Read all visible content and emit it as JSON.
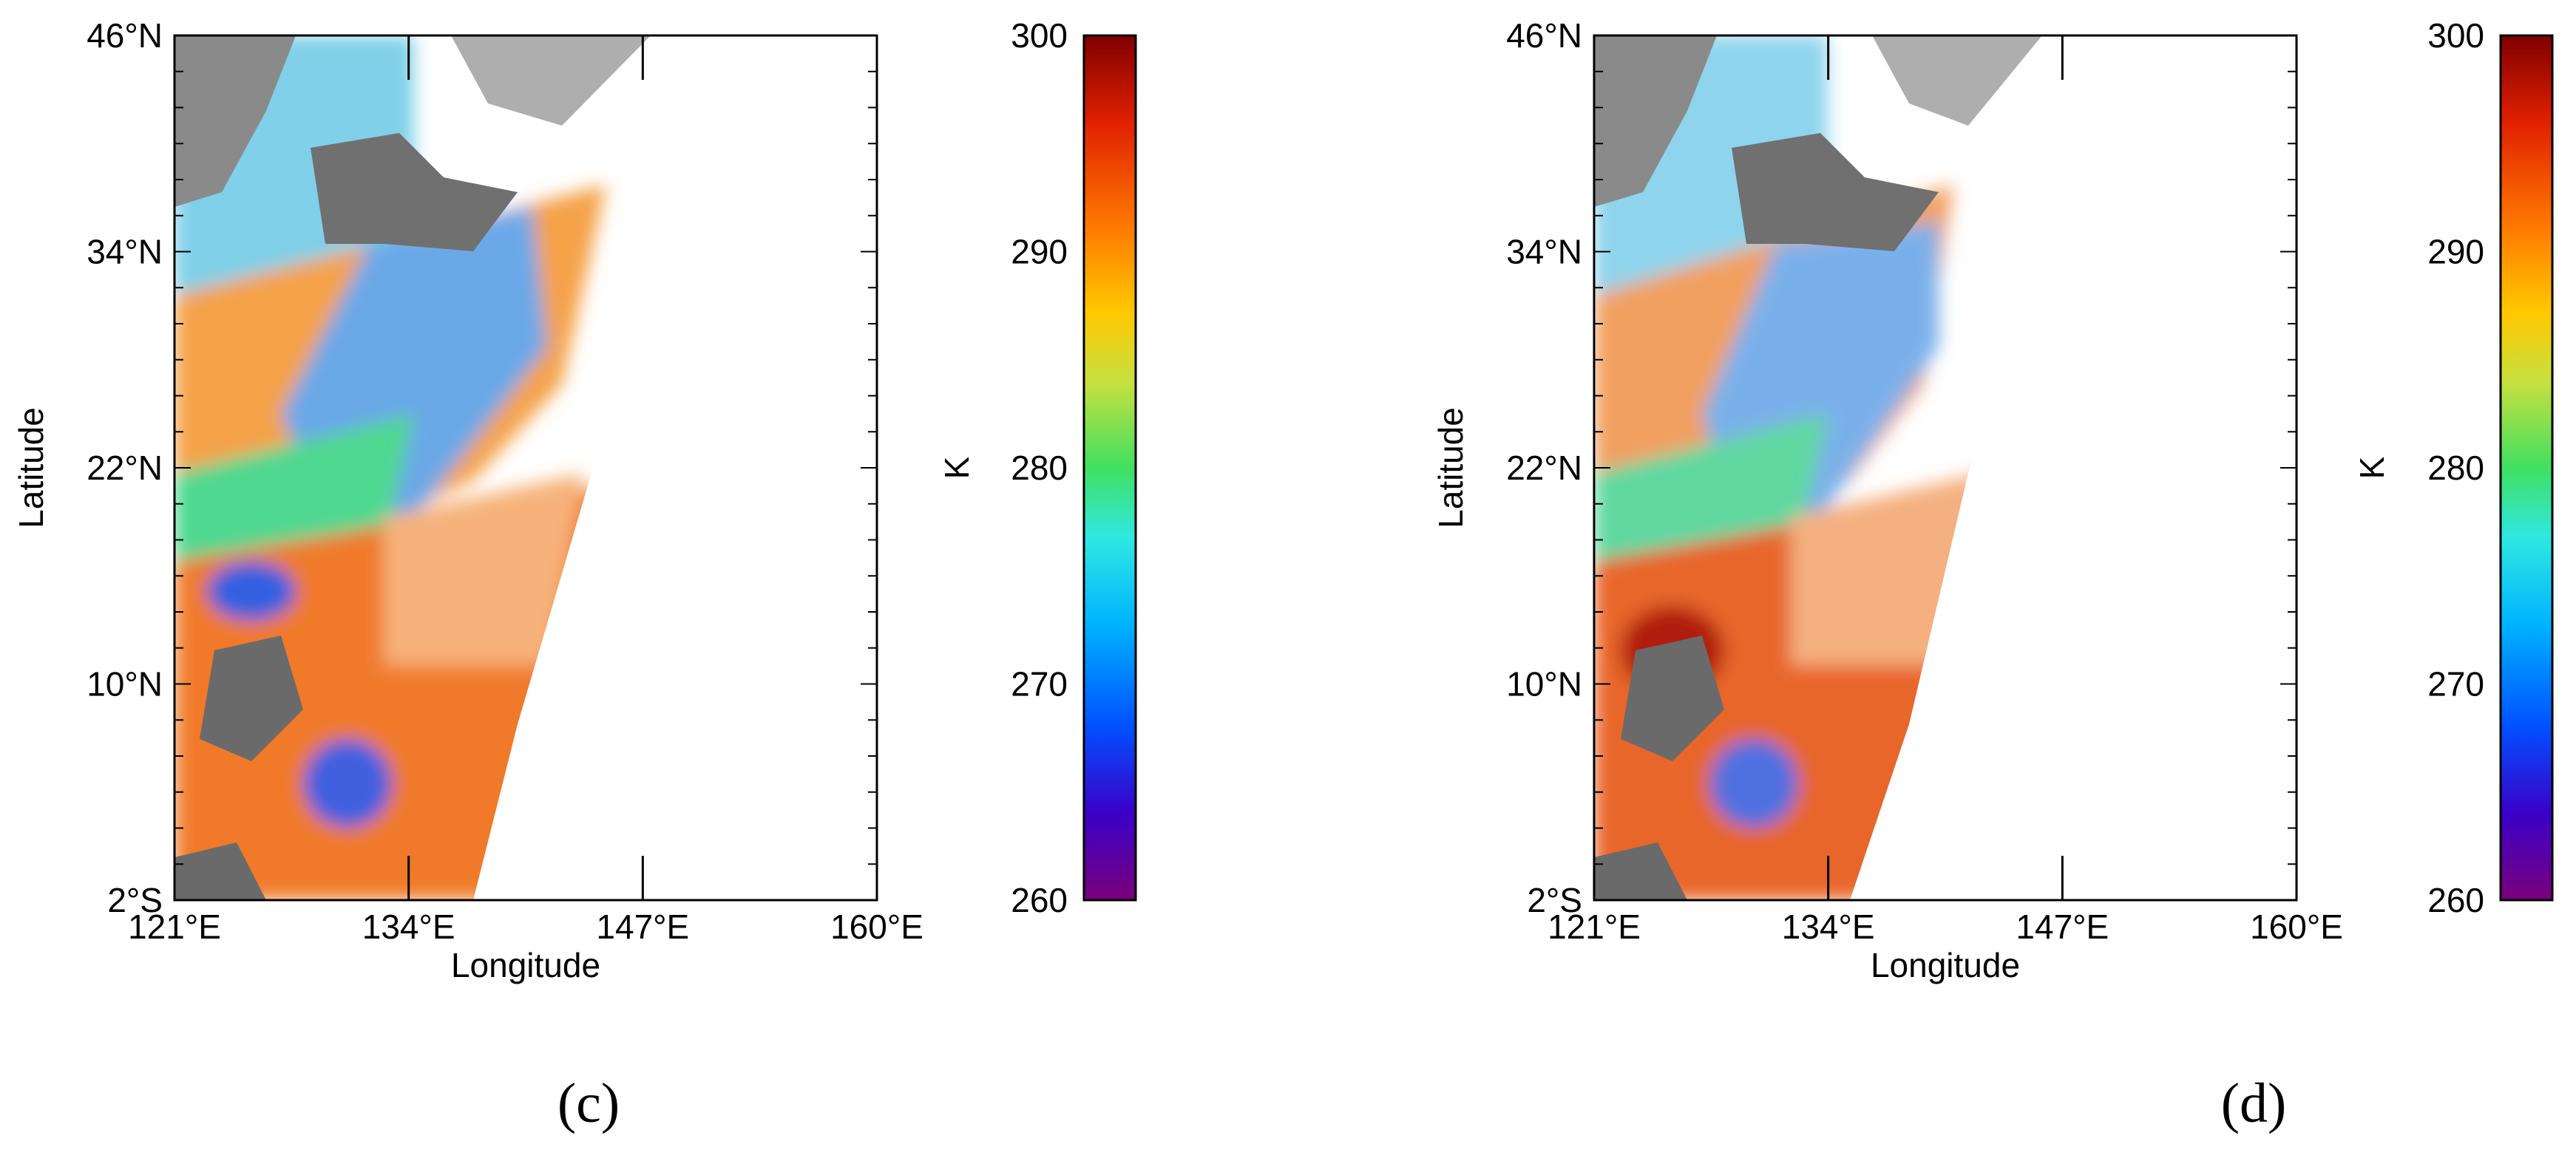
{
  "panels": [
    {
      "label": "(c)",
      "map": {
        "xlabel": "Longitude",
        "ylabel": "Latitude",
        "x_ticks": [
          "121°E",
          "134°E",
          "147°E",
          "160°E"
        ],
        "y_ticks": [
          "46°N",
          "34°N",
          "22°N",
          "10°N",
          "2°S"
        ]
      },
      "colorbar": {
        "unit": "K",
        "ticks": [
          "300",
          "290",
          "280",
          "270",
          "260"
        ]
      }
    },
    {
      "label": "(d)",
      "map": {
        "xlabel": "Longitude",
        "ylabel": "Latitude",
        "x_ticks": [
          "121°E",
          "134°E",
          "147°E",
          "160°E"
        ],
        "y_ticks": [
          "46°N",
          "34°N",
          "22°N",
          "10°N",
          "2°S"
        ]
      },
      "colorbar": {
        "unit": "K",
        "ticks": [
          "300",
          "290",
          "280",
          "270",
          "260"
        ]
      }
    }
  ],
  "chart_data": [
    {
      "type": "heatmap",
      "title": "",
      "xlabel": "Longitude",
      "ylabel": "Latitude",
      "xlim": [
        121,
        160
      ],
      "ylim": [
        -2,
        46
      ],
      "x_ticks": [
        121,
        134,
        147,
        160
      ],
      "y_ticks": [
        46,
        34,
        22,
        10,
        -2
      ],
      "colorbar": {
        "label": "K",
        "range": [
          260,
          300
        ],
        "ticks": [
          300,
          290,
          280,
          270,
          260
        ]
      },
      "colormap": [
        "#7a007a",
        "#3a00c8",
        "#0050ff",
        "#00b4ff",
        "#30e8e0",
        "#40e060",
        "#c8e040",
        "#ffc800",
        "#ff7800",
        "#e02000",
        "#800000"
      ],
      "land_color": "#6e6e6e"
    },
    {
      "type": "heatmap",
      "title": "",
      "xlabel": "Longitude",
      "ylabel": "Latitude",
      "xlim": [
        121,
        160
      ],
      "ylim": [
        -2,
        46
      ],
      "x_ticks": [
        121,
        134,
        147,
        160
      ],
      "y_ticks": [
        46,
        34,
        22,
        10,
        -2
      ],
      "colorbar": {
        "label": "K",
        "range": [
          260,
          300
        ],
        "ticks": [
          300,
          290,
          280,
          270,
          260
        ]
      },
      "colormap": [
        "#7a007a",
        "#3a00c8",
        "#0050ff",
        "#00b4ff",
        "#30e8e0",
        "#40e060",
        "#c8e040",
        "#ffc800",
        "#ff7800",
        "#e02000",
        "#800000"
      ],
      "land_color": "#6e6e6e"
    }
  ]
}
